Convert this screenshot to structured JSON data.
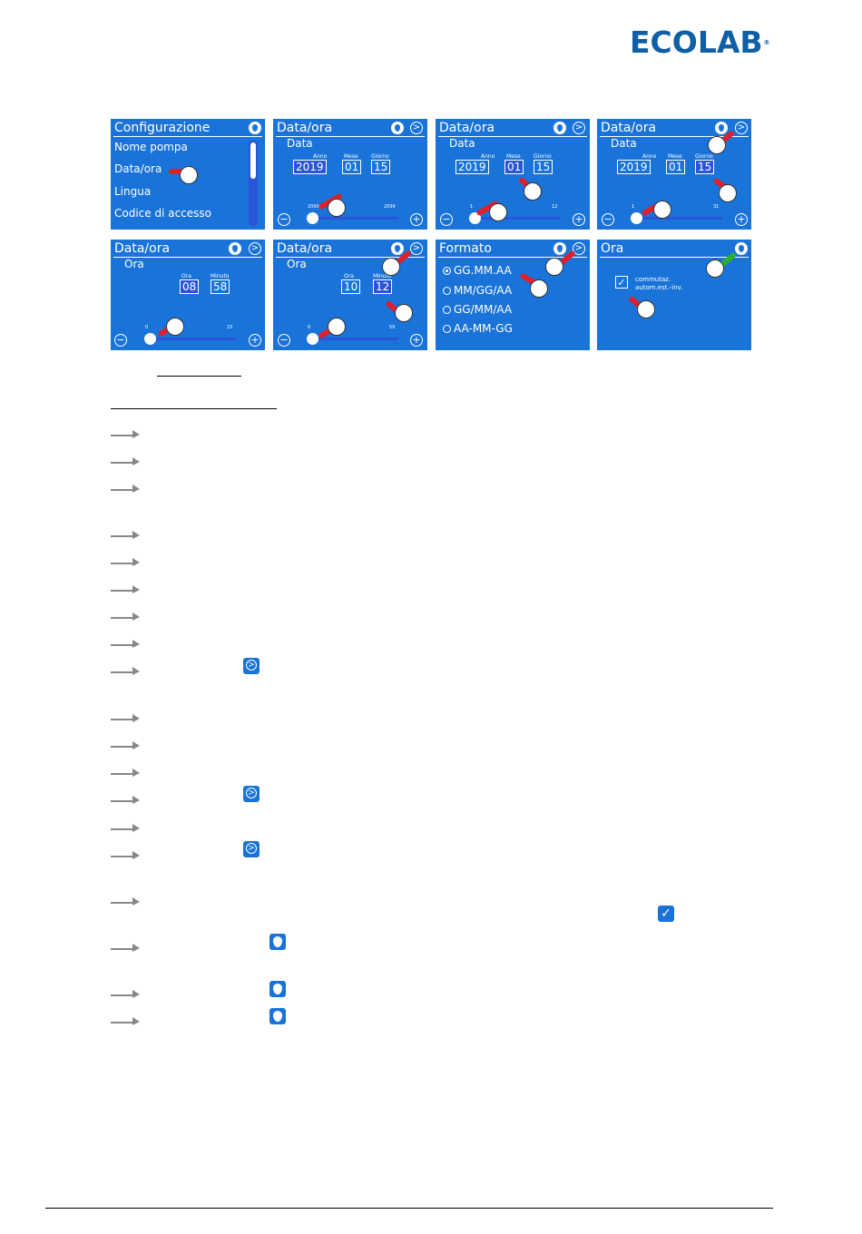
{
  "logo": {
    "text": "ECOLAB",
    "mark": "®"
  },
  "panels": [
    {
      "title": "Configurazione",
      "items": [
        "Nome pompa",
        "Data/ora",
        "Lingua",
        "Codice di accesso"
      ]
    },
    {
      "title": "Data/ora",
      "section": "Data",
      "fields": [
        {
          "label": "Anno",
          "value": "2019"
        },
        {
          "label": "Mese",
          "value": "01"
        },
        {
          "label": "Giorno",
          "value": "15"
        }
      ],
      "slider_min": "2000",
      "slider_max": "2099"
    },
    {
      "title": "Data/ora",
      "section": "Data",
      "fields": [
        {
          "label": "Anno",
          "value": "2019"
        },
        {
          "label": "Mese",
          "value": "01"
        },
        {
          "label": "Giorno",
          "value": "15"
        }
      ],
      "slider_min": "1",
      "slider_max": "12"
    },
    {
      "title": "Data/ora",
      "section": "Data",
      "fields": [
        {
          "label": "Anno",
          "value": "2019"
        },
        {
          "label": "Mese",
          "value": "01"
        },
        {
          "label": "Giorno",
          "value": "15"
        }
      ],
      "slider_min": "1",
      "slider_max": "31"
    },
    {
      "title": "Data/ora",
      "section": "Ora",
      "fields": [
        {
          "label": "Ora",
          "value": "08"
        },
        {
          "label": "Minuto",
          "value": "58"
        }
      ],
      "slider_min": "0",
      "slider_max": "23"
    },
    {
      "title": "Data/ora",
      "section": "Ora",
      "fields": [
        {
          "label": "Ora",
          "value": "10"
        },
        {
          "label": "Minuto",
          "value": "12"
        }
      ],
      "slider_min": "0",
      "slider_max": "59"
    },
    {
      "title": "Formato",
      "options": [
        "GG.MM.AA",
        "MM/GG/AA",
        "GG/MM/AA",
        "AA-MM-GG"
      ]
    },
    {
      "title": "Ora",
      "checkbox_label_1": "commutaz.",
      "checkbox_label_2": "autom.est.-inv."
    }
  ],
  "glyphs": {
    "minus": "−",
    "plus": "+",
    "next": ">",
    "check": "✓"
  },
  "accent": "#1a73d8"
}
